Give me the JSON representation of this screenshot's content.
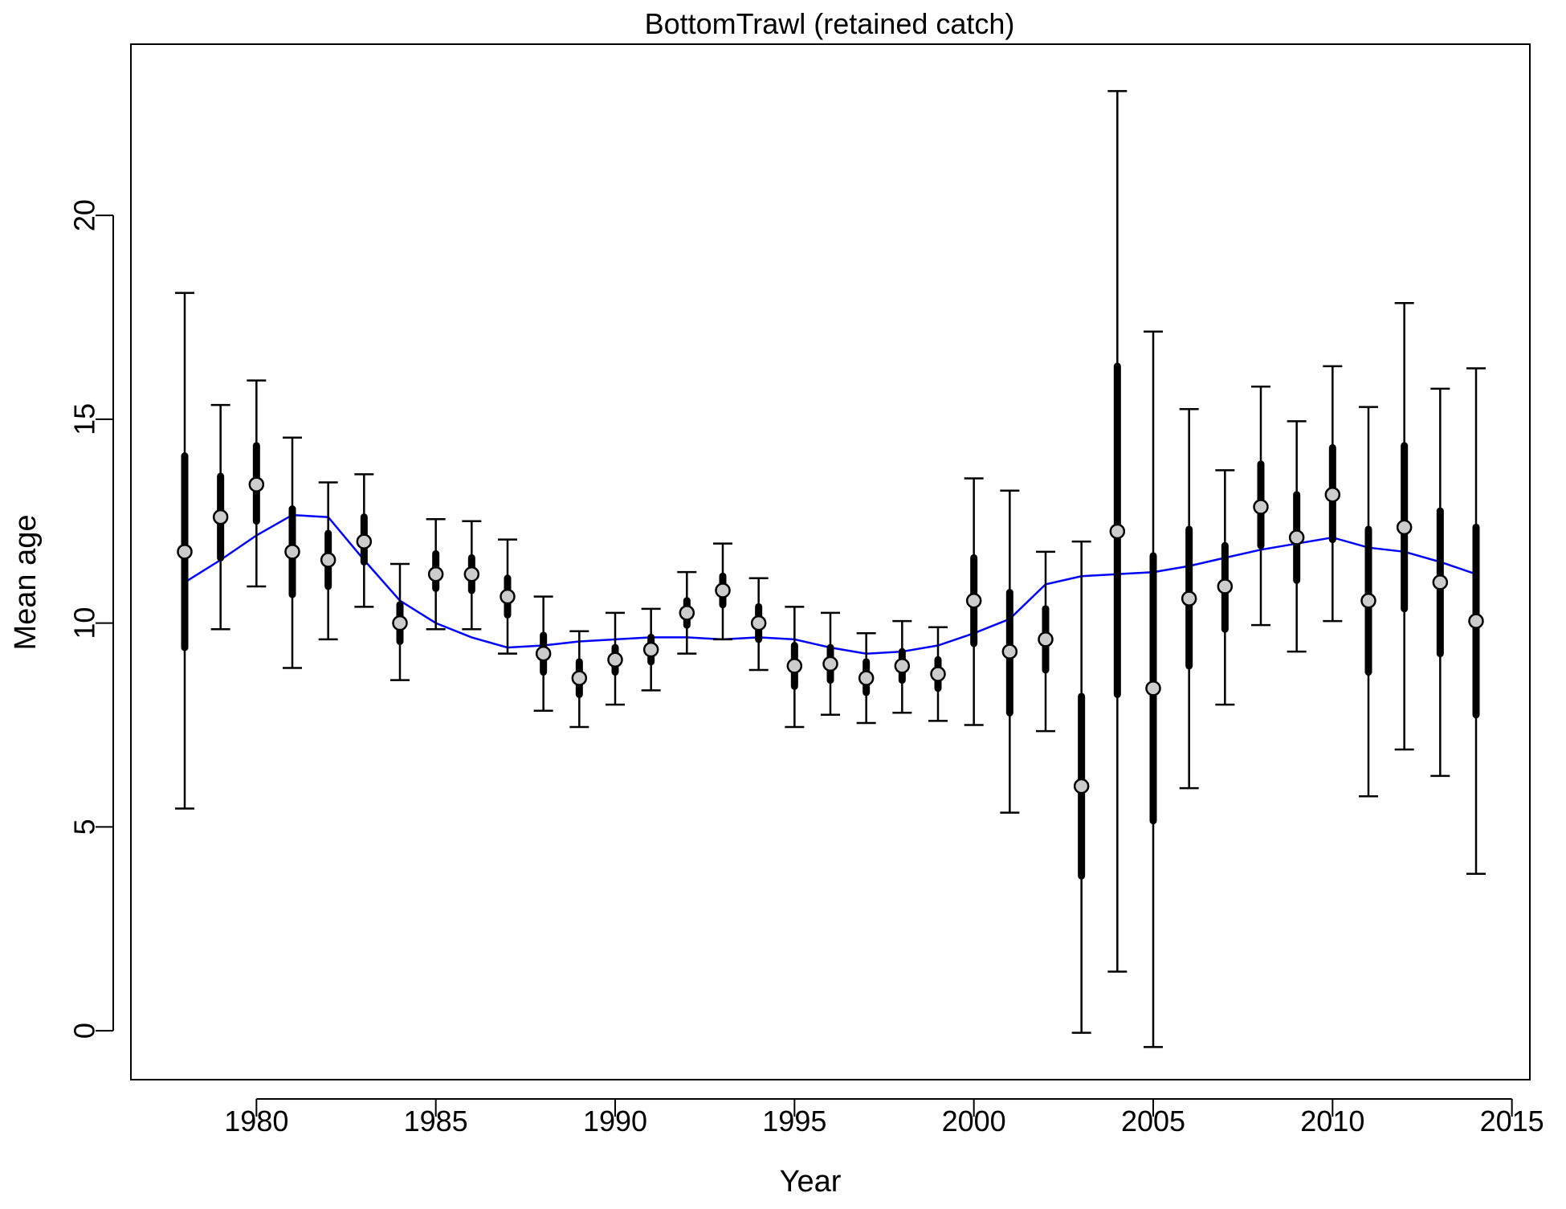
{
  "chart_data": {
    "type": "scatter",
    "title": "BottomTrawl (retained catch)",
    "xlabel": "Year",
    "ylabel": "Mean age",
    "xlim": [
      1976.5,
      2015.5
    ],
    "ylim": [
      -1.2,
      24.2
    ],
    "xticks": [
      1980,
      1985,
      1990,
      1995,
      2000,
      2005,
      2010,
      2015
    ],
    "yticks": [
      0,
      5,
      10,
      15,
      20
    ],
    "grid": false,
    "legend": "none",
    "colors": {
      "fit_line": "#0000ff",
      "points_fill": "#cccccc",
      "points_stroke": "#000000",
      "bars": "#000000"
    },
    "series": [
      {
        "type": "points_with_intervals",
        "x": [
          1978,
          1979,
          1980,
          1981,
          1982,
          1983,
          1984,
          1985,
          1986,
          1987,
          1988,
          1989,
          1990,
          1991,
          1992,
          1993,
          1994,
          1995,
          1996,
          1997,
          1998,
          1999,
          2000,
          2001,
          2002,
          2003,
          2004,
          2005,
          2006,
          2007,
          2008,
          2009,
          2010,
          2011,
          2012,
          2013,
          2014
        ],
        "y": [
          11.75,
          12.6,
          13.4,
          11.75,
          11.55,
          12.0,
          10.0,
          11.2,
          11.2,
          10.65,
          9.25,
          8.65,
          9.1,
          9.35,
          10.25,
          10.8,
          10.0,
          8.95,
          9.0,
          8.65,
          8.95,
          8.75,
          10.55,
          9.3,
          9.6,
          6.0,
          12.25,
          8.4,
          10.6,
          10.9,
          12.85,
          12.1,
          13.15,
          10.55,
          12.35,
          11.0,
          10.05
        ],
        "inner_lo": [
          9.4,
          11.6,
          12.5,
          10.7,
          10.9,
          11.5,
          9.55,
          10.85,
          10.8,
          10.2,
          8.8,
          8.25,
          8.8,
          9.05,
          9.95,
          10.45,
          9.6,
          8.45,
          8.6,
          8.3,
          8.6,
          8.4,
          9.5,
          7.8,
          8.85,
          3.8,
          8.25,
          5.15,
          8.95,
          9.85,
          11.9,
          11.05,
          12.05,
          8.8,
          10.35,
          9.25,
          7.75
        ],
        "inner_hi": [
          14.1,
          13.6,
          14.35,
          12.8,
          12.2,
          12.6,
          10.45,
          11.7,
          11.6,
          11.1,
          9.7,
          9.05,
          9.4,
          9.65,
          10.55,
          11.15,
          10.4,
          9.45,
          9.4,
          9.05,
          9.3,
          9.1,
          11.6,
          10.75,
          10.35,
          8.2,
          16.3,
          11.65,
          12.3,
          11.9,
          13.9,
          13.15,
          14.3,
          12.3,
          14.35,
          12.75,
          12.35
        ],
        "outer_lo": [
          5.45,
          9.85,
          10.9,
          8.9,
          9.6,
          10.4,
          8.6,
          9.85,
          9.85,
          9.25,
          7.85,
          7.45,
          8.0,
          8.35,
          9.25,
          9.6,
          8.85,
          7.45,
          7.75,
          7.55,
          7.8,
          7.6,
          7.5,
          5.35,
          7.35,
          -0.05,
          1.45,
          -0.4,
          5.95,
          8.0,
          9.95,
          9.3,
          10.05,
          5.75,
          6.9,
          6.25,
          3.85
        ],
        "outer_hi": [
          18.1,
          15.35,
          15.95,
          14.55,
          13.45,
          13.65,
          11.45,
          12.55,
          12.5,
          12.05,
          10.65,
          9.8,
          10.25,
          10.35,
          11.25,
          11.95,
          11.1,
          10.4,
          10.25,
          9.75,
          10.05,
          9.9,
          13.55,
          13.25,
          11.75,
          12.0,
          23.05,
          17.15,
          15.25,
          13.75,
          15.8,
          14.95,
          16.3,
          15.3,
          17.85,
          15.75,
          16.25
        ]
      },
      {
        "type": "line",
        "x": [
          1978,
          1979,
          1980,
          1981,
          1982,
          1983,
          1984,
          1985,
          1986,
          1987,
          1988,
          1989,
          1990,
          1991,
          1992,
          1993,
          1994,
          1995,
          1996,
          1997,
          1998,
          1999,
          2000,
          2001,
          2002,
          2003,
          2004,
          2005,
          2006,
          2007,
          2008,
          2009,
          2010,
          2011,
          2012,
          2013,
          2014
        ],
        "y": [
          11.0,
          11.55,
          12.15,
          12.65,
          12.6,
          11.55,
          10.55,
          10.0,
          9.65,
          9.4,
          9.45,
          9.55,
          9.6,
          9.65,
          9.65,
          9.6,
          9.65,
          9.6,
          9.4,
          9.25,
          9.3,
          9.45,
          9.75,
          10.1,
          10.95,
          11.15,
          11.2,
          11.25,
          11.4,
          11.6,
          11.8,
          11.95,
          12.1,
          11.85,
          11.75,
          11.5,
          11.2
        ]
      }
    ]
  }
}
